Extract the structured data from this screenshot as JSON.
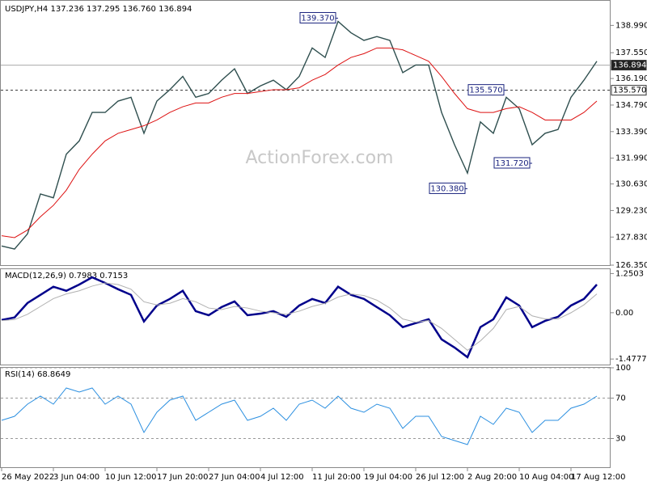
{
  "chart_data": [
    {
      "type": "line",
      "title": "USDJPY,H4  137.236 137.295 136.760 136.894",
      "watermark": "ActionForex.com",
      "ylim": [
        126.35,
        140.2
      ],
      "yticks": [
        {
          "value": 138.99,
          "label": "138.990"
        },
        {
          "value": 137.55,
          "label": "137.550"
        },
        {
          "value": 136.19,
          "label": "136.190"
        },
        {
          "value": 134.79,
          "label": "134.790"
        },
        {
          "value": 133.39,
          "label": "133.390"
        },
        {
          "value": 131.99,
          "label": "131.990"
        },
        {
          "value": 130.63,
          "label": "130.630"
        },
        {
          "value": 129.23,
          "label": "129.230"
        },
        {
          "value": 127.83,
          "label": "127.830"
        },
        {
          "value": 126.35,
          "label": "126.350"
        }
      ],
      "grid": false,
      "series": [
        {
          "color": "#2f4f4f",
          "values": [
            127.36,
            127.2,
            128.0,
            130.1,
            129.9,
            132.2,
            132.9,
            134.4,
            134.4,
            135.0,
            135.2,
            133.3,
            135.0,
            135.6,
            136.3,
            135.2,
            135.4,
            136.1,
            136.7,
            135.4,
            135.8,
            136.1,
            135.6,
            136.3,
            137.8,
            137.3,
            139.2,
            138.6,
            138.2,
            138.4,
            138.2,
            136.5,
            136.9,
            136.9,
            134.4,
            132.7,
            131.2,
            133.9,
            133.3,
            135.2,
            134.6,
            132.7,
            133.3,
            133.5,
            135.2,
            136.1,
            137.1
          ]
        },
        {
          "color": "#dd1111",
          "values": [
            127.9,
            127.8,
            128.2,
            128.9,
            129.5,
            130.3,
            131.4,
            132.2,
            132.9,
            133.3,
            133.5,
            133.7,
            134.0,
            134.4,
            134.7,
            134.9,
            134.9,
            135.2,
            135.4,
            135.4,
            135.5,
            135.6,
            135.6,
            135.7,
            136.1,
            136.4,
            136.9,
            137.3,
            137.5,
            137.8,
            137.8,
            137.7,
            137.4,
            137.1,
            136.3,
            135.4,
            134.6,
            134.4,
            134.4,
            134.6,
            134.7,
            134.4,
            134.0,
            134.0,
            134.0,
            134.4,
            135.0
          ]
        }
      ],
      "price_lines": [
        {
          "value": 136.894,
          "label": "136.894",
          "style": "solid"
        },
        {
          "value": 135.57,
          "label": "135.570",
          "style": "dashed"
        }
      ],
      "annotations": [
        {
          "value": 139.37,
          "label": "139.370",
          "index": 26
        },
        {
          "value": 135.57,
          "label": "135.570",
          "index": 39
        },
        {
          "value": 130.38,
          "label": "130.380",
          "index": 36
        },
        {
          "value": 131.72,
          "label": "131.720",
          "index": 41
        }
      ]
    },
    {
      "type": "line",
      "title": "MACD(12,26,9) 0.7983 0.7153",
      "ylim": [
        -1.68,
        1.39
      ],
      "yticks": [
        1.2503,
        {
          "value": 0,
          "label": "0.00"
        },
        -1.4777
      ],
      "grid": false,
      "series": [
        {
          "color": "#00008b",
          "values": [
            -0.23,
            -0.15,
            0.31,
            0.57,
            0.83,
            0.7,
            0.9,
            1.13,
            0.95,
            0.75,
            0.57,
            -0.28,
            0.23,
            0.44,
            0.7,
            0.05,
            -0.08,
            0.18,
            0.36,
            -0.08,
            -0.03,
            0.05,
            -0.13,
            0.23,
            0.44,
            0.31,
            0.83,
            0.57,
            0.44,
            0.18,
            -0.08,
            -0.46,
            -0.33,
            -0.21,
            -0.85,
            -1.11,
            -1.42,
            -0.46,
            -0.21,
            0.49,
            0.23,
            -0.46,
            -0.26,
            -0.13,
            0.23,
            0.44,
            0.9
          ]
        },
        {
          "color": "#b0b0b0",
          "values": [
            -0.25,
            -0.22,
            -0.05,
            0.2,
            0.45,
            0.6,
            0.7,
            0.85,
            0.95,
            0.9,
            0.75,
            0.35,
            0.25,
            0.3,
            0.45,
            0.35,
            0.15,
            0.1,
            0.2,
            0.15,
            0.05,
            0.0,
            -0.05,
            0.05,
            0.2,
            0.3,
            0.5,
            0.6,
            0.55,
            0.4,
            0.15,
            -0.2,
            -0.3,
            -0.25,
            -0.5,
            -0.85,
            -1.2,
            -0.9,
            -0.5,
            0.1,
            0.2,
            -0.1,
            -0.2,
            -0.2,
            0.0,
            0.25,
            0.6
          ]
        }
      ]
    },
    {
      "type": "line",
      "title": "RSI(14) 68.8649",
      "ylim": [
        0,
        100
      ],
      "yticks": [
        100,
        70,
        30
      ],
      "grid": true,
      "categories": [
        "26 May 2022",
        null,
        null,
        null,
        "3 Jun 04:00",
        null,
        null,
        null,
        "10 Jun 12:00",
        null,
        null,
        null,
        "17 Jun 20:00",
        null,
        null,
        null,
        "27 Jun 04:00",
        null,
        null,
        null,
        "4 Jul 12:00",
        null,
        null,
        null,
        "11 Jul 20:00",
        null,
        null,
        null,
        "19 Jul 04:00",
        null,
        null,
        null,
        "26 Jul 12:00",
        null,
        null,
        null,
        "2 Aug 20:00",
        null,
        null,
        null,
        "10 Aug 04:00",
        null,
        null,
        null,
        "17 Aug 12:00",
        null,
        null
      ],
      "series": [
        {
          "color": "#2b8fe0",
          "values": [
            48,
            52,
            64,
            72,
            64,
            80,
            76,
            80,
            64,
            72,
            64,
            36,
            56,
            68,
            72,
            48,
            56,
            64,
            68,
            48,
            52,
            60,
            48,
            64,
            68,
            60,
            72,
            60,
            56,
            64,
            60,
            40,
            52,
            52,
            32,
            28,
            24,
            52,
            44,
            60,
            56,
            36,
            48,
            48,
            60,
            64,
            72
          ]
        }
      ]
    }
  ]
}
